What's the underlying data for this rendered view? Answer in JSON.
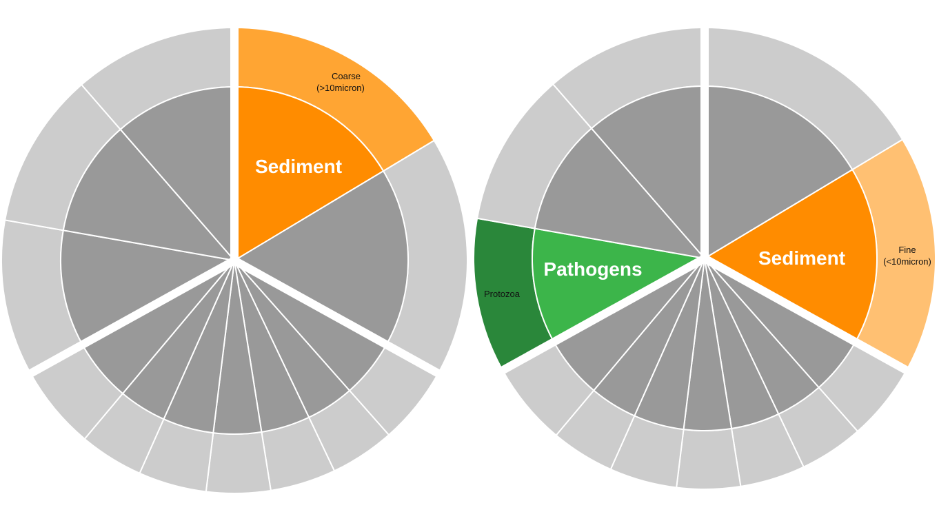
{
  "wheels": [
    {
      "inner_label": "Sediment",
      "outer_label": [
        "Coarse",
        "(>10micron)"
      ]
    },
    {
      "inner_labels": [
        "Sediment",
        "Pathogens"
      ],
      "outer_labels": [
        [
          "Fine",
          "(<10micron)"
        ],
        "Protozoa"
      ]
    }
  ]
}
